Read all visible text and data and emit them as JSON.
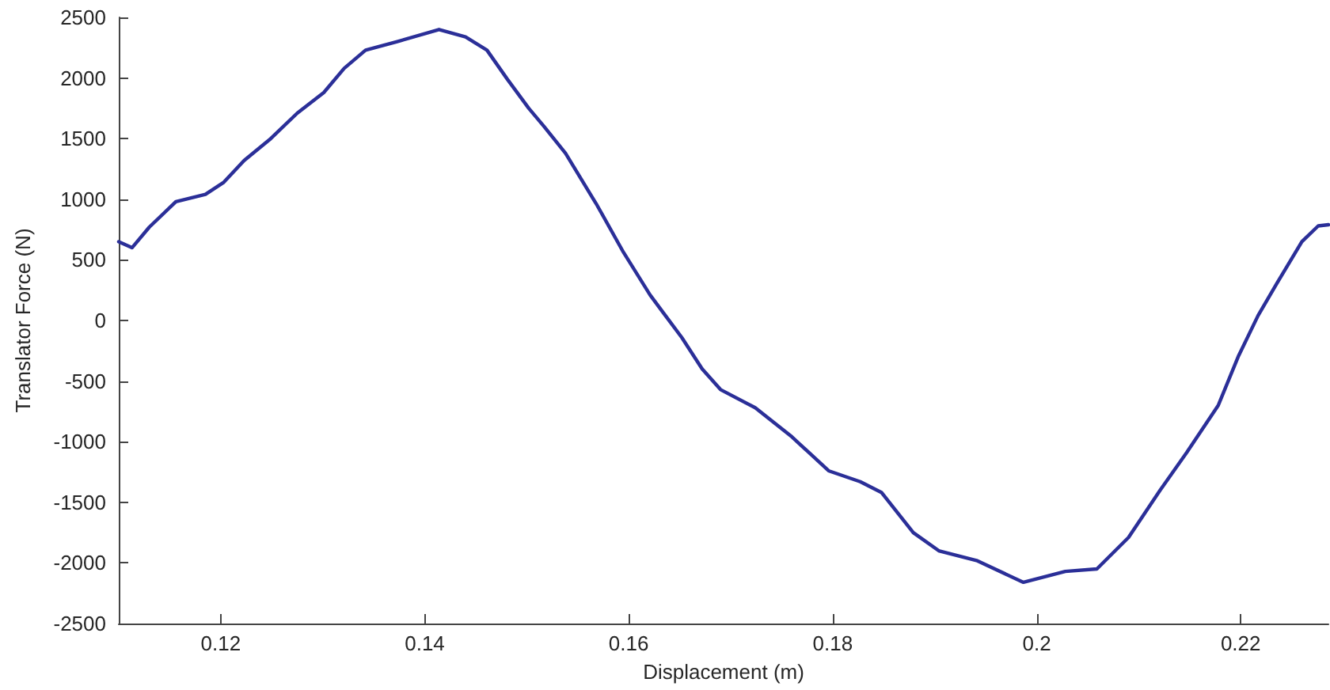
{
  "chart_data": {
    "type": "line",
    "xlabel": "Displacement (m)",
    "ylabel": "Translator Force (N)",
    "xlim": [
      0.11,
      0.2286
    ],
    "xticks": [
      0.12,
      0.14,
      0.16,
      0.18,
      0.2,
      0.22
    ],
    "ylim": [
      -2500,
      2500
    ],
    "yticks": [
      -2500,
      -2000,
      -1500,
      -1000,
      -500,
      0,
      500,
      1000,
      1500,
      2000,
      2500
    ],
    "marker": "none",
    "line_style": "solid",
    "series": [
      {
        "color": "#2b2f98",
        "x": [
          0.11,
          0.1113,
          0.113,
          0.1156,
          0.1185,
          0.1203,
          0.1223,
          0.1249,
          0.1275,
          0.1301,
          0.1321,
          0.1342,
          0.1373,
          0.1414,
          0.144,
          0.1461,
          0.1481,
          0.1502,
          0.1517,
          0.1538,
          0.1569,
          0.1595,
          0.1621,
          0.1636,
          0.1652,
          0.1672,
          0.169,
          0.1724,
          0.176,
          0.1796,
          0.1827,
          0.1848,
          0.1879,
          0.1904,
          0.1941,
          0.1987,
          0.2028,
          0.2059,
          0.209,
          0.2121,
          0.2147,
          0.2178,
          0.2198,
          0.2217,
          0.2235,
          0.226,
          0.2276,
          0.2286
        ],
        "values": [
          650,
          600,
          770,
          980,
          1040,
          1140,
          1320,
          1500,
          1710,
          1880,
          2080,
          2230,
          2300,
          2400,
          2340,
          2230,
          1990,
          1750,
          1600,
          1380,
          950,
          560,
          210,
          40,
          -140,
          -400,
          -570,
          -720,
          -960,
          -1240,
          -1330,
          -1420,
          -1750,
          -1900,
          -1980,
          -2160,
          -2070,
          -2050,
          -1790,
          -1400,
          -1090,
          -700,
          -290,
          40,
          300,
          650,
          780,
          790
        ]
      }
    ]
  }
}
